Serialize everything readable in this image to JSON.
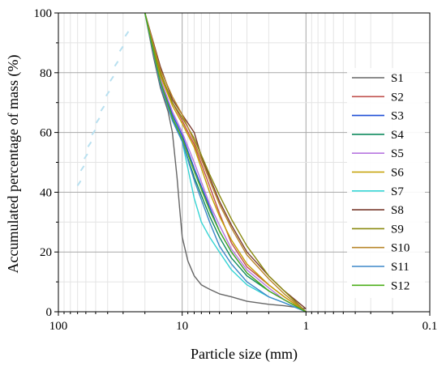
{
  "chart_data": {
    "type": "line",
    "xlabel": "Particle size (mm)",
    "ylabel": "Accumulated percentage of mass (%)",
    "x_scale": "log",
    "x_reversed": true,
    "xlim": [
      100,
      0.1
    ],
    "ylim": [
      0,
      100
    ],
    "x_ticks": [
      100,
      10,
      1,
      0.1
    ],
    "x_tick_labels": [
      "100",
      "10",
      "1",
      "0.1"
    ],
    "y_ticks": [
      0,
      20,
      40,
      60,
      80,
      100
    ],
    "y_tick_labels": [
      "0",
      "20",
      "40",
      "60",
      "80",
      "100"
    ],
    "grid": true,
    "legend_position": "right",
    "series": [
      {
        "name": "S1",
        "color": "#666666",
        "x": [
          20,
          17,
          15,
          13,
          12,
          11,
          10.5,
          10,
          9,
          8,
          7,
          6,
          5,
          4,
          3,
          2,
          1.5,
          1
        ],
        "y": [
          100,
          85,
          75,
          67,
          60,
          45,
          35,
          25,
          17,
          12,
          9,
          7.5,
          6,
          5,
          3.5,
          2.5,
          2,
          1
        ]
      },
      {
        "name": "S2",
        "color": "#c0504d",
        "x": [
          20,
          15,
          12,
          10,
          8,
          6,
          5,
          4,
          3,
          2,
          1.5,
          1
        ],
        "y": [
          100,
          80,
          70,
          64,
          56,
          42,
          33,
          23,
          15,
          9,
          5,
          0
        ]
      },
      {
        "name": "S3",
        "color": "#1f4fd6",
        "x": [
          20,
          15,
          12,
          10,
          8,
          6,
          5,
          4,
          3,
          2,
          1.5,
          1
        ],
        "y": [
          100,
          78,
          66,
          59,
          48,
          35,
          27,
          20,
          13,
          7,
          4,
          0
        ]
      },
      {
        "name": "S4",
        "color": "#0e8a5e",
        "x": [
          20,
          15,
          12,
          10,
          8,
          6,
          5,
          4,
          3,
          2,
          1.5,
          1
        ],
        "y": [
          100,
          77,
          65,
          57,
          45,
          32,
          25,
          18,
          12,
          7,
          4,
          0
        ]
      },
      {
        "name": "S5",
        "color": "#b777e0",
        "x": [
          20,
          15,
          12,
          10,
          8,
          6,
          5,
          4,
          3,
          2,
          1.5,
          1
        ],
        "y": [
          100,
          78,
          67,
          60,
          50,
          36,
          29,
          21,
          14,
          8,
          4,
          0
        ]
      },
      {
        "name": "S6",
        "color": "#c4a000",
        "x": [
          20,
          15,
          12,
          10,
          8,
          6,
          5,
          4,
          3,
          2,
          1.5,
          1
        ],
        "y": [
          100,
          79,
          69,
          63,
          55,
          40,
          32,
          24,
          16,
          9,
          5,
          0
        ]
      },
      {
        "name": "S7",
        "color": "#35d4d4",
        "x": [
          20,
          15,
          12,
          10,
          9,
          8,
          7,
          6,
          5,
          4,
          3,
          2,
          1.5,
          1
        ],
        "y": [
          100,
          76,
          64,
          57,
          48,
          38,
          30,
          25,
          20,
          14,
          9,
          5,
          3,
          0
        ]
      },
      {
        "name": "S8",
        "color": "#7a3b2e",
        "x": [
          20,
          15,
          12,
          10,
          8,
          7,
          6,
          5,
          4,
          3,
          2,
          1.5,
          1
        ],
        "y": [
          100,
          82,
          71,
          66,
          60,
          52,
          45,
          37,
          29,
          20,
          12,
          7,
          1
        ]
      },
      {
        "name": "S9",
        "color": "#8a8a10",
        "x": [
          20,
          15,
          12,
          10,
          8,
          6,
          5,
          4,
          3,
          2,
          1.5,
          1
        ],
        "y": [
          100,
          80,
          70,
          65,
          58,
          46,
          39,
          31,
          22,
          12,
          7,
          0
        ]
      },
      {
        "name": "S10",
        "color": "#b8862b",
        "x": [
          20,
          15,
          12,
          10,
          8,
          6,
          5,
          4,
          3,
          2,
          1.5,
          1
        ],
        "y": [
          100,
          81,
          72,
          66,
          57,
          44,
          36,
          28,
          19,
          11,
          6,
          0
        ]
      },
      {
        "name": "S11",
        "color": "#3d87c9",
        "x": [
          20,
          15,
          12,
          10,
          8,
          6,
          5,
          4,
          3,
          2,
          1.5,
          1
        ],
        "y": [
          100,
          76,
          64,
          57,
          44,
          30,
          22,
          16,
          10,
          5,
          3,
          0
        ]
      },
      {
        "name": "S12",
        "color": "#4cae1a",
        "x": [
          20,
          15,
          12,
          10,
          8,
          6,
          5,
          4,
          3,
          2,
          1.5,
          1
        ],
        "y": [
          100,
          77,
          65,
          58,
          47,
          34,
          27,
          20,
          13,
          7,
          4,
          0
        ]
      }
    ],
    "faint_markers": {
      "color": "#b8e0f0",
      "points": [
        [
          68,
          43
        ],
        [
          64,
          48
        ],
        [
          60,
          52
        ],
        [
          56,
          56
        ],
        [
          52,
          60
        ],
        [
          48,
          64
        ],
        [
          44,
          68
        ],
        [
          40,
          73
        ],
        [
          37,
          78
        ],
        [
          34,
          83
        ],
        [
          31,
          88
        ],
        [
          28,
          93
        ]
      ]
    }
  }
}
